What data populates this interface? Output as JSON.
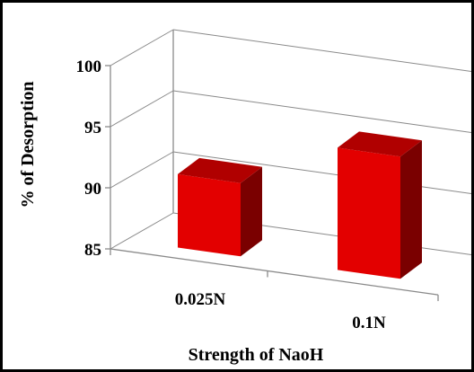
{
  "chart_data": {
    "type": "bar",
    "style": "3d-column",
    "categories": [
      "0.025N",
      "0.1N"
    ],
    "values": [
      91,
      95
    ],
    "ylabel": "% of Desorption",
    "xlabel": "Strength of NaoH",
    "ylim": [
      85,
      100
    ],
    "yticks": [
      "85",
      "90",
      "95",
      "100"
    ],
    "grid": true,
    "legend": "none",
    "colors": {
      "bar_front": "#e30000",
      "bar_top": "#b00000",
      "bar_side": "#7a0000",
      "grid": "#8a8a8a"
    }
  }
}
